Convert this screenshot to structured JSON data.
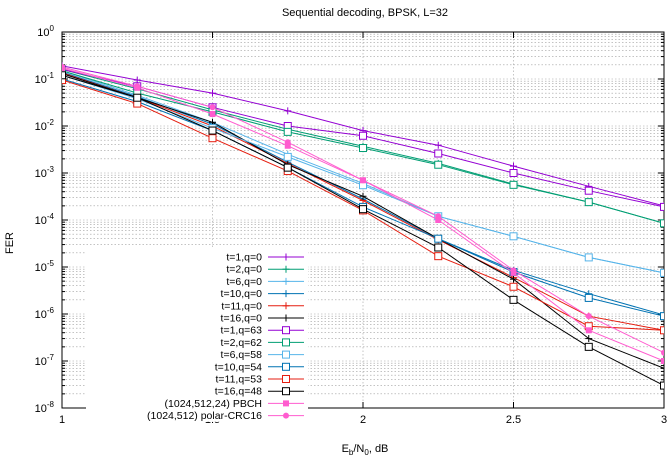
{
  "chart_data": {
    "type": "line",
    "title": "Sequential decoding, BPSK, L=32",
    "xlabel": "E_b/N_0, dB",
    "xlabel_parts": {
      "main": "E",
      "sub1": "b",
      "sep": "/N",
      "sub2": "0",
      "tail": ", dB"
    },
    "ylabel": "FER",
    "xlim": [
      1,
      3
    ],
    "ylim": [
      1e-08,
      1
    ],
    "yscale": "log",
    "grid": true,
    "legend_position": "bottom-center",
    "x_ticks": [
      {
        "value": 1,
        "label": "1"
      },
      {
        "value": 1.5,
        "label": "1.5"
      },
      {
        "value": 2,
        "label": "2"
      },
      {
        "value": 2.5,
        "label": "2.5"
      },
      {
        "value": 3,
        "label": "3"
      }
    ],
    "y_ticks": [
      {
        "exp": 0,
        "base": "10",
        "sup": "0"
      },
      {
        "exp": -1,
        "base": "10",
        "sup": "-1"
      },
      {
        "exp": -2,
        "base": "10",
        "sup": "-2"
      },
      {
        "exp": -3,
        "base": "10",
        "sup": "-3"
      },
      {
        "exp": -4,
        "base": "10",
        "sup": "-4"
      },
      {
        "exp": -5,
        "base": "10",
        "sup": "-5"
      },
      {
        "exp": -6,
        "base": "10",
        "sup": "-6"
      },
      {
        "exp": -7,
        "base": "10",
        "sup": "-7"
      },
      {
        "exp": -8,
        "base": "10",
        "sup": "-8"
      }
    ],
    "series": [
      {
        "name": "t=1,q=0",
        "color": "#9400d3",
        "marker": "plus",
        "x": [
          1,
          1.25,
          1.5,
          1.75,
          2,
          2.25,
          2.5,
          2.75,
          3
        ],
        "y": [
          0.19,
          0.095,
          0.05,
          0.021,
          0.008,
          0.0039,
          0.0014,
          0.00052,
          0.0002
        ]
      },
      {
        "name": "t=2,q=0",
        "color": "#009e73",
        "marker": "plus",
        "x": [
          1,
          1.25,
          1.5,
          1.75,
          2,
          2.25,
          2.5,
          2.75,
          3
        ],
        "y": [
          0.16,
          0.062,
          0.022,
          0.0085,
          0.0037,
          0.0016,
          0.00058,
          0.00024,
          8.5e-05
        ]
      },
      {
        "name": "t=6,q=0",
        "color": "#56b4e9",
        "marker": "plus",
        "x": [
          1,
          1.25,
          1.5,
          1.75,
          2,
          2.25,
          2.5,
          2.75,
          3
        ],
        "y": [
          0.15,
          0.045,
          0.012,
          0.0025,
          0.0006,
          0.00012,
          4.5e-05,
          1.6e-05,
          7.5e-06
        ]
      },
      {
        "name": "t=10,q=0",
        "color": "#0072b2",
        "marker": "plus",
        "x": [
          1,
          1.25,
          1.5,
          1.75,
          2,
          2.25,
          2.5,
          2.75,
          3
        ],
        "y": [
          0.14,
          0.042,
          0.011,
          0.0017,
          0.00028,
          4e-05,
          8.5e-06,
          2.7e-06,
          9.5e-07
        ]
      },
      {
        "name": "t=11,q=0",
        "color": "#e51e10",
        "marker": "plus",
        "x": [
          1,
          1.25,
          1.5,
          1.75,
          2,
          2.25,
          2.5,
          2.75,
          3
        ],
        "y": [
          0.135,
          0.04,
          0.01,
          0.0016,
          0.00026,
          3.8e-05,
          6e-06,
          9e-07,
          4.5e-07
        ]
      },
      {
        "name": "t=16,q=0",
        "color": "#000000",
        "marker": "plus",
        "x": [
          1,
          1.25,
          1.5,
          1.75,
          2,
          2.25,
          2.5,
          2.75,
          3
        ],
        "y": [
          0.13,
          0.04,
          0.012,
          0.0015,
          0.00032,
          4e-05,
          5.5e-06,
          3e-07,
          7e-08
        ]
      },
      {
        "name": "t=1,q=63",
        "color": "#9400d3",
        "marker": "square",
        "x": [
          1,
          1.25,
          1.5,
          1.75,
          2,
          2.25,
          2.5,
          2.75,
          3
        ],
        "y": [
          0.16,
          0.07,
          0.025,
          0.01,
          0.0062,
          0.0026,
          0.001,
          0.00042,
          0.00019
        ]
      },
      {
        "name": "t=2,q=62",
        "color": "#009e73",
        "marker": "square",
        "x": [
          1,
          1.25,
          1.5,
          1.75,
          2,
          2.25,
          2.5,
          2.75,
          3
        ],
        "y": [
          0.15,
          0.05,
          0.02,
          0.0075,
          0.0034,
          0.0015,
          0.00056,
          0.00024,
          8.5e-05
        ]
      },
      {
        "name": "t=6,q=58",
        "color": "#56b4e9",
        "marker": "square",
        "x": [
          1,
          1.25,
          1.5,
          1.75,
          2,
          2.25,
          2.5,
          2.75,
          3
        ],
        "y": [
          0.12,
          0.038,
          0.009,
          0.0022,
          0.00055,
          0.00012,
          4.5e-05,
          1.6e-05,
          7.5e-06
        ]
      },
      {
        "name": "t=10,q=54",
        "color": "#0072b2",
        "marker": "square",
        "x": [
          1,
          1.25,
          1.5,
          1.75,
          2,
          2.25,
          2.5,
          2.75,
          3
        ],
        "y": [
          0.1,
          0.033,
          0.008,
          0.0013,
          0.00019,
          4e-05,
          7.8e-06,
          2.2e-06,
          9e-07
        ]
      },
      {
        "name": "t=11,q=53",
        "color": "#e51e10",
        "marker": "square",
        "x": [
          1,
          1.25,
          1.5,
          1.75,
          2,
          2.25,
          2.5,
          2.75,
          3
        ],
        "y": [
          0.095,
          0.03,
          0.0055,
          0.0011,
          0.00016,
          1.7e-05,
          3.8e-06,
          5.5e-07,
          4.5e-07
        ]
      },
      {
        "name": "t=16,q=48",
        "color": "#000000",
        "marker": "square",
        "x": [
          1,
          1.25,
          1.5,
          1.75,
          2,
          2.25,
          2.5,
          2.75,
          3
        ],
        "y": [
          0.12,
          0.04,
          0.008,
          0.0013,
          0.00017,
          2.6e-05,
          2e-06,
          2e-07,
          3e-08
        ]
      },
      {
        "name": "(1024,512,24) PBCH",
        "color": "#ff5ccf",
        "marker": "filled-square",
        "x": [
          1,
          1.25,
          1.5,
          1.75,
          2,
          2.25,
          2.5,
          2.75,
          3
        ],
        "y": [
          0.17,
          0.065,
          0.018,
          0.0038,
          0.0007,
          0.0001,
          7.5e-06,
          4.5e-07,
          1e-07
        ]
      },
      {
        "name": "(1024,512) polar-CRC16",
        "color": "#ff5ccf",
        "marker": "filled-circle",
        "x": [
          1,
          1.25,
          1.5,
          1.75,
          2,
          2.25,
          2.5,
          2.75,
          3
        ],
        "y": [
          0.18,
          0.07,
          0.025,
          0.0045,
          0.0007,
          0.00012,
          8.5e-06,
          9e-07,
          1.5e-07
        ]
      }
    ]
  }
}
